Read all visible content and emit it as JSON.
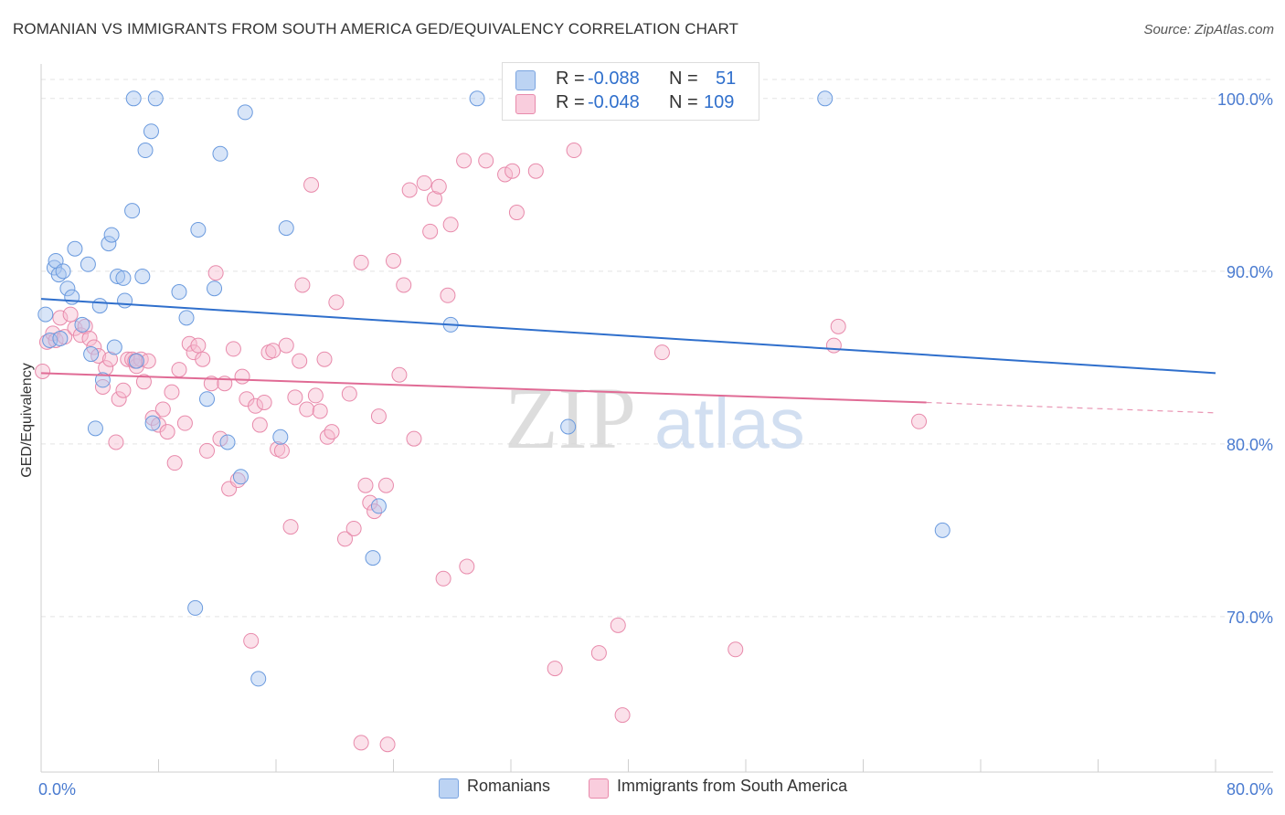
{
  "title": "ROMANIAN VS IMMIGRANTS FROM SOUTH AMERICA GED/EQUIVALENCY CORRELATION CHART",
  "source": "Source: ZipAtlas.com",
  "watermark": {
    "zip": "ZIP",
    "atlas": "atlas"
  },
  "colors": {
    "blue_fill": "#a9c5f0",
    "blue_stroke": "#6a9ade",
    "blue_line": "#2f6fcc",
    "pink_fill": "#f7bcd0",
    "pink_stroke": "#e88aab",
    "pink_line": "#e06b95",
    "tick_text": "#4a7bd0",
    "grid": "#e3e3e3"
  },
  "legend": {
    "rows": [
      {
        "r_label": "R =",
        "r_value": "-0.088",
        "n_label": "N =",
        "n_value": "51"
      },
      {
        "r_label": "R =",
        "r_value": "-0.048",
        "n_label": "N =",
        "n_value": "109"
      }
    ]
  },
  "bottom_legend": [
    "Romanians",
    "Immigrants from South America"
  ],
  "chart_data": {
    "type": "scatter",
    "ylabel": "GED/Equivalency",
    "xlim": [
      0,
      80
    ],
    "ylim": [
      61,
      102
    ],
    "x_tick_labels": [
      "0.0%",
      "80.0%"
    ],
    "y_ticks": [
      {
        "value": 70,
        "label": "70.0%"
      },
      {
        "value": 80,
        "label": "80.0%"
      },
      {
        "value": 90,
        "label": "90.0%"
      },
      {
        "value": 100,
        "label": "100.0%"
      }
    ],
    "grid": true,
    "series": [
      {
        "name": "Romanians",
        "trend": {
          "x0": 0,
          "y0": 88.4,
          "x1": 80,
          "y1": 84.1
        },
        "points": [
          [
            6.3,
            100
          ],
          [
            7.8,
            100
          ],
          [
            29.7,
            100
          ],
          [
            32.0,
            100
          ],
          [
            53.4,
            100
          ],
          [
            0.9,
            90.2
          ],
          [
            1.0,
            90.6
          ],
          [
            1.2,
            89.8
          ],
          [
            1.5,
            90.0
          ],
          [
            1.8,
            89.0
          ],
          [
            2.1,
            88.5
          ],
          [
            2.3,
            91.3
          ],
          [
            3.2,
            90.4
          ],
          [
            4.0,
            88.0
          ],
          [
            4.6,
            91.6
          ],
          [
            4.8,
            92.1
          ],
          [
            5.2,
            89.7
          ],
          [
            5.6,
            89.6
          ],
          [
            5.7,
            88.3
          ],
          [
            6.2,
            93.5
          ],
          [
            6.9,
            89.7
          ],
          [
            7.1,
            97.0
          ],
          [
            7.5,
            98.1
          ],
          [
            9.4,
            88.8
          ],
          [
            9.9,
            87.3
          ],
          [
            10.7,
            92.4
          ],
          [
            11.8,
            89.0
          ],
          [
            12.2,
            96.8
          ],
          [
            13.9,
            99.2
          ],
          [
            16.7,
            92.5
          ],
          [
            0.3,
            87.5
          ],
          [
            0.6,
            86.0
          ],
          [
            1.3,
            86.1
          ],
          [
            2.8,
            86.9
          ],
          [
            3.4,
            85.2
          ],
          [
            4.2,
            83.7
          ],
          [
            5.0,
            85.6
          ],
          [
            6.5,
            84.8
          ],
          [
            7.6,
            81.2
          ],
          [
            11.3,
            82.6
          ],
          [
            12.7,
            80.1
          ],
          [
            13.6,
            78.1
          ],
          [
            16.3,
            80.4
          ],
          [
            23.0,
            76.4
          ],
          [
            22.6,
            73.4
          ],
          [
            10.5,
            70.5
          ],
          [
            14.8,
            66.4
          ],
          [
            27.9,
            86.9
          ],
          [
            35.9,
            81.0
          ],
          [
            61.4,
            75.0
          ],
          [
            3.7,
            80.9
          ]
        ]
      },
      {
        "name": "Immigrants from South America",
        "trend": {
          "x0": 0,
          "y0": 84.1,
          "x1": 60.3,
          "y1": 82.4
        },
        "trend_dashed": {
          "x0": 60.3,
          "y0": 82.4,
          "x1": 80,
          "y1": 81.8
        },
        "points": [
          [
            0.1,
            84.2
          ],
          [
            0.4,
            85.9
          ],
          [
            0.8,
            86.4
          ],
          [
            1.0,
            86.0
          ],
          [
            1.3,
            87.3
          ],
          [
            1.6,
            86.2
          ],
          [
            2.0,
            87.5
          ],
          [
            2.3,
            86.7
          ],
          [
            2.7,
            86.3
          ],
          [
            3.0,
            86.8
          ],
          [
            3.3,
            86.1
          ],
          [
            3.6,
            85.6
          ],
          [
            3.9,
            85.1
          ],
          [
            4.2,
            83.3
          ],
          [
            4.4,
            84.4
          ],
          [
            4.7,
            84.9
          ],
          [
            5.1,
            80.1
          ],
          [
            5.3,
            82.6
          ],
          [
            5.6,
            83.1
          ],
          [
            5.9,
            84.9
          ],
          [
            6.2,
            84.9
          ],
          [
            6.5,
            84.5
          ],
          [
            6.8,
            84.9
          ],
          [
            7.0,
            83.6
          ],
          [
            7.3,
            84.8
          ],
          [
            7.6,
            81.5
          ],
          [
            8.0,
            81.1
          ],
          [
            8.3,
            82.0
          ],
          [
            8.6,
            80.7
          ],
          [
            8.9,
            83.0
          ],
          [
            9.1,
            78.9
          ],
          [
            9.4,
            84.3
          ],
          [
            9.8,
            81.2
          ],
          [
            10.1,
            85.8
          ],
          [
            10.4,
            85.3
          ],
          [
            10.7,
            85.7
          ],
          [
            11.0,
            84.9
          ],
          [
            11.3,
            79.6
          ],
          [
            11.6,
            83.5
          ],
          [
            11.9,
            89.9
          ],
          [
            12.2,
            80.3
          ],
          [
            12.5,
            83.5
          ],
          [
            12.8,
            77.4
          ],
          [
            13.1,
            85.5
          ],
          [
            13.4,
            77.9
          ],
          [
            13.7,
            83.9
          ],
          [
            14.0,
            82.6
          ],
          [
            14.3,
            68.6
          ],
          [
            14.6,
            82.2
          ],
          [
            14.9,
            81.1
          ],
          [
            15.2,
            82.4
          ],
          [
            15.5,
            85.3
          ],
          [
            15.8,
            85.4
          ],
          [
            16.1,
            79.7
          ],
          [
            16.4,
            79.6
          ],
          [
            16.7,
            85.7
          ],
          [
            17.0,
            75.2
          ],
          [
            17.3,
            82.7
          ],
          [
            17.6,
            84.8
          ],
          [
            17.8,
            89.2
          ],
          [
            18.1,
            82.0
          ],
          [
            18.4,
            95.0
          ],
          [
            18.7,
            82.8
          ],
          [
            19.0,
            81.9
          ],
          [
            19.3,
            84.9
          ],
          [
            19.5,
            80.4
          ],
          [
            19.8,
            80.7
          ],
          [
            20.1,
            88.2
          ],
          [
            20.7,
            74.5
          ],
          [
            21.0,
            82.9
          ],
          [
            21.3,
            75.1
          ],
          [
            21.8,
            90.5
          ],
          [
            22.1,
            77.6
          ],
          [
            22.4,
            76.6
          ],
          [
            22.7,
            76.1
          ],
          [
            23.0,
            81.6
          ],
          [
            23.5,
            77.6
          ],
          [
            24.0,
            90.6
          ],
          [
            24.4,
            84.0
          ],
          [
            24.7,
            89.2
          ],
          [
            25.1,
            94.7
          ],
          [
            25.4,
            80.3
          ],
          [
            26.1,
            95.1
          ],
          [
            26.5,
            92.3
          ],
          [
            26.8,
            94.2
          ],
          [
            27.1,
            94.9
          ],
          [
            27.4,
            72.2
          ],
          [
            27.7,
            88.6
          ],
          [
            27.9,
            92.7
          ],
          [
            28.8,
            96.4
          ],
          [
            29.0,
            72.9
          ],
          [
            30.3,
            96.4
          ],
          [
            31.6,
            95.6
          ],
          [
            32.1,
            95.8
          ],
          [
            32.4,
            93.4
          ],
          [
            33.7,
            95.8
          ],
          [
            35.0,
            67.0
          ],
          [
            36.3,
            97.0
          ],
          [
            38.0,
            67.9
          ],
          [
            39.3,
            69.5
          ],
          [
            39.6,
            64.3
          ],
          [
            42.3,
            85.3
          ],
          [
            47.3,
            68.1
          ],
          [
            54.0,
            85.7
          ],
          [
            54.3,
            86.8
          ],
          [
            59.8,
            81.3
          ],
          [
            21.8,
            62.7
          ],
          [
            23.6,
            62.6
          ],
          [
            6.4,
            84.8
          ]
        ]
      }
    ]
  }
}
